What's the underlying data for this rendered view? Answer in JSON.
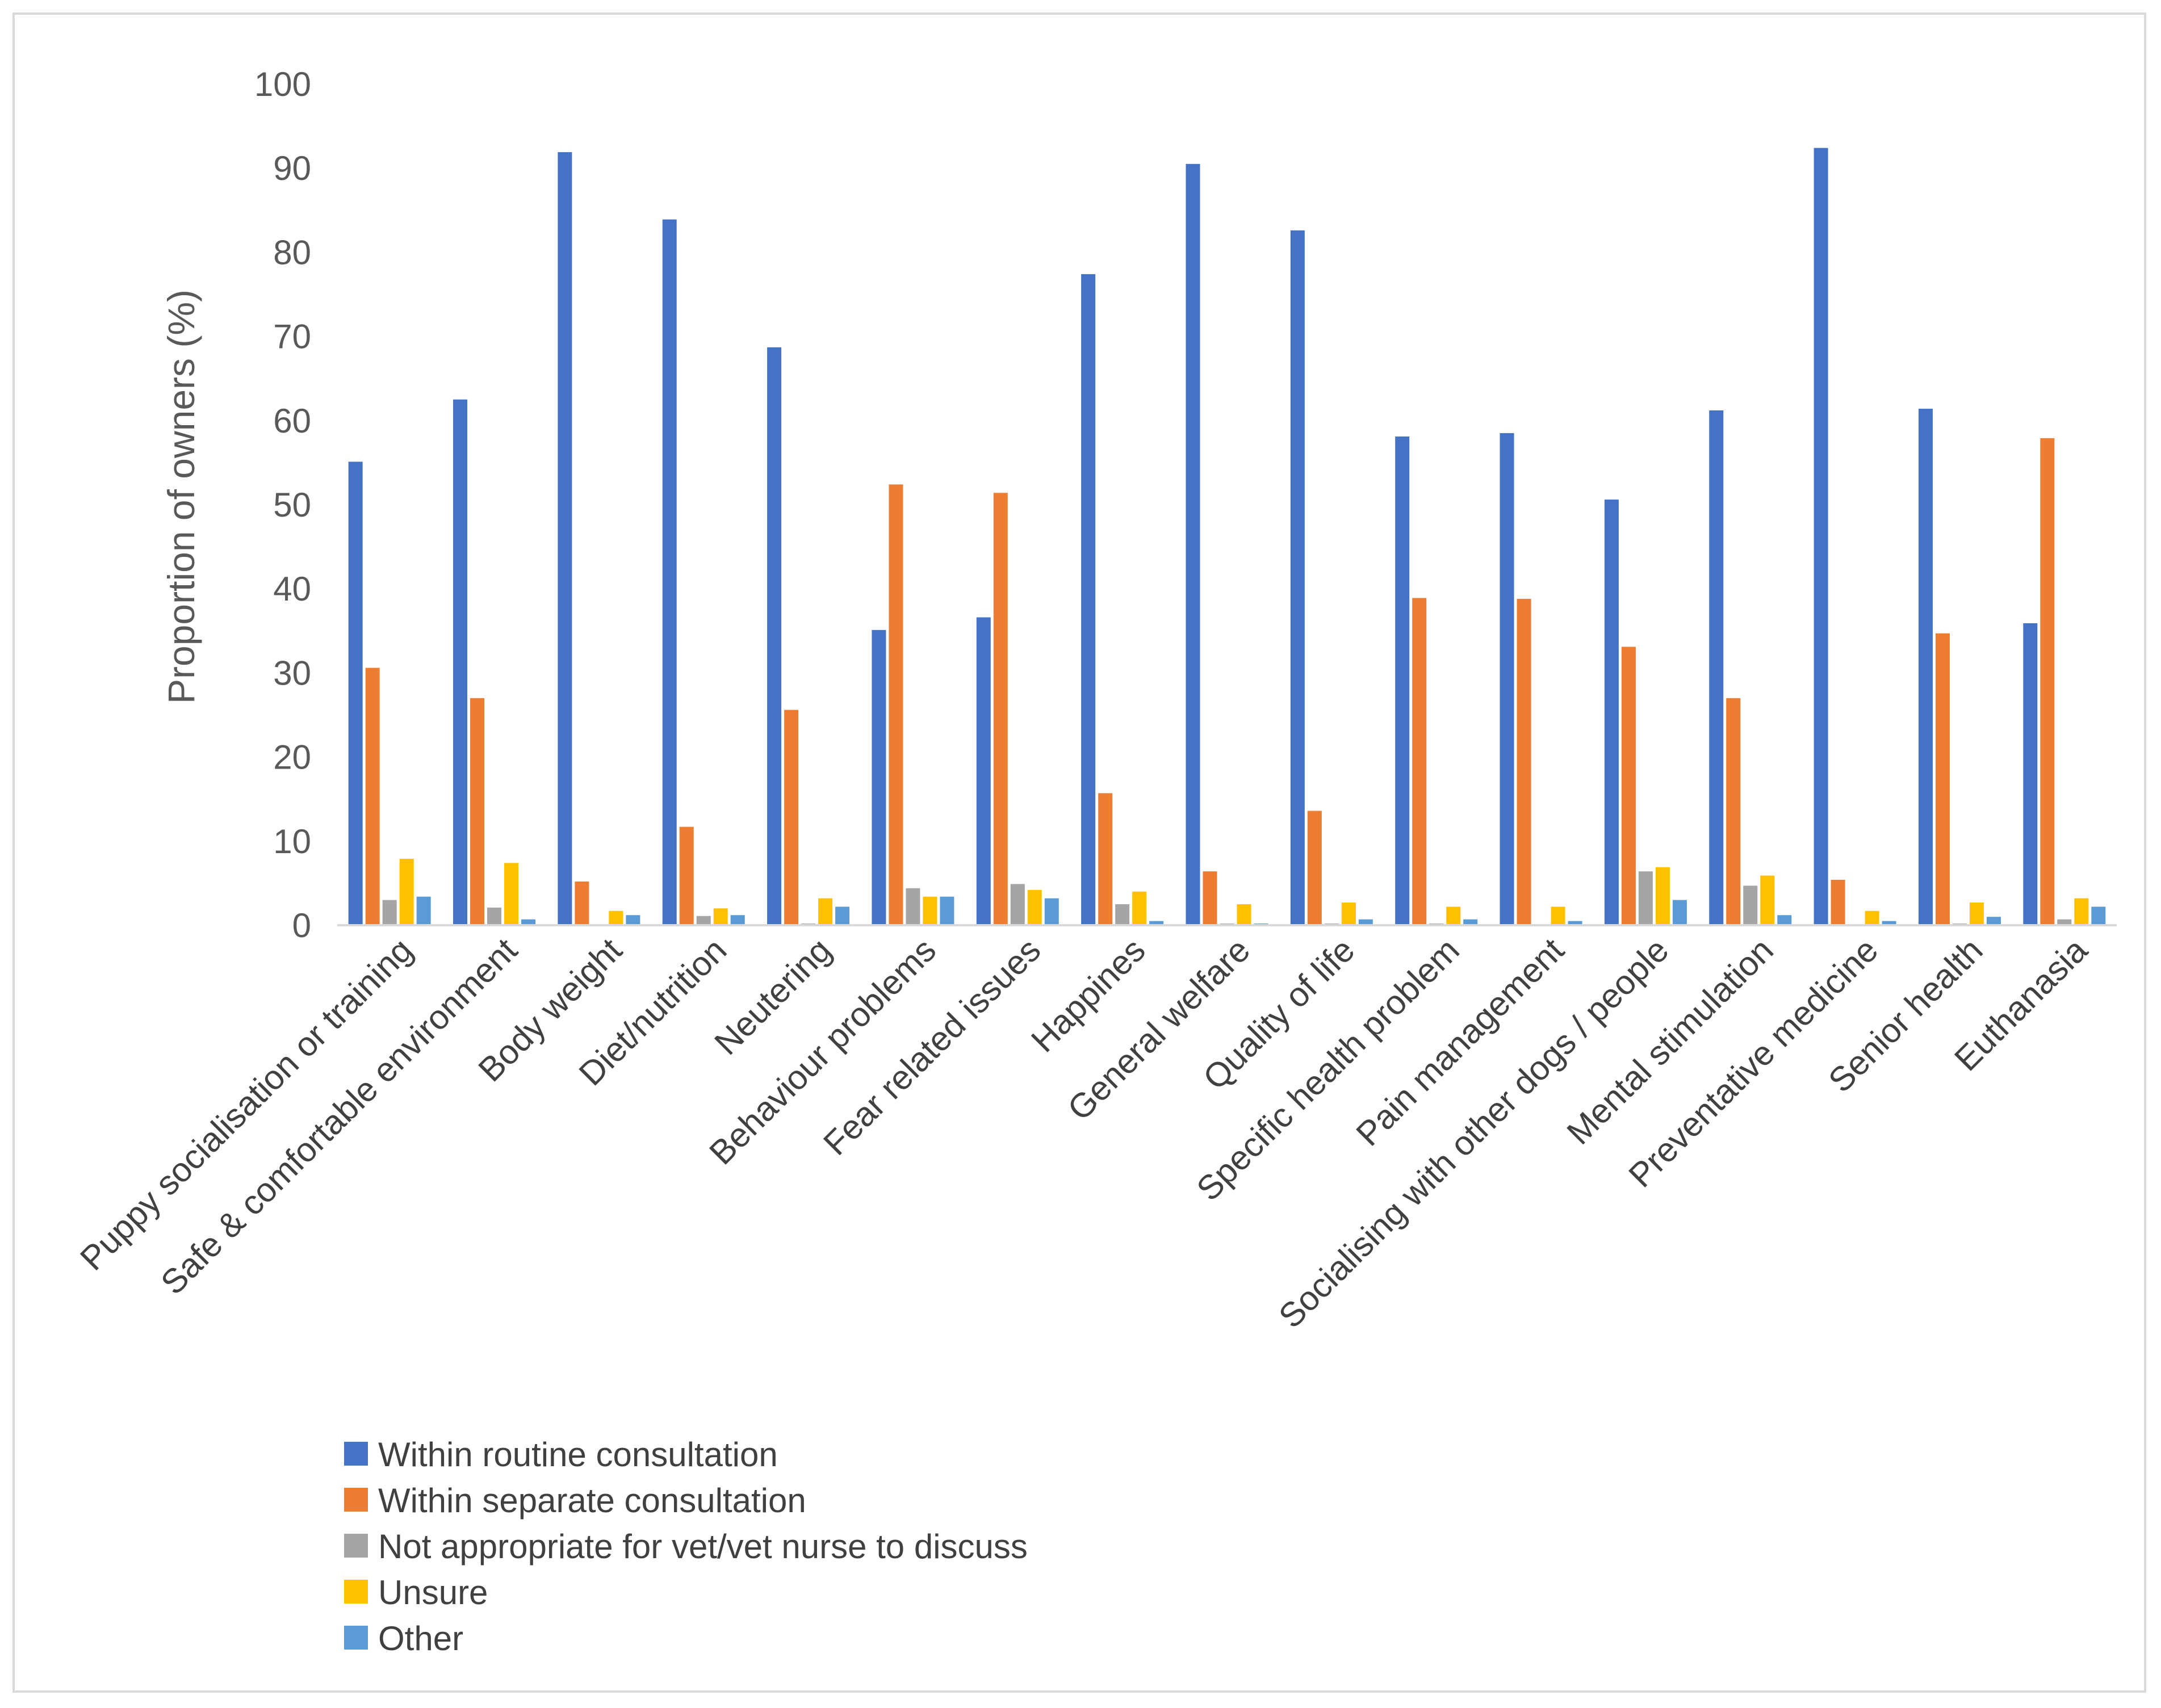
{
  "chart_data": {
    "type": "bar",
    "title": "",
    "xlabel": "",
    "ylabel": "Proportion of owners (%)",
    "ylim": [
      0,
      100
    ],
    "yticks": [
      "0",
      "10",
      "20",
      "30",
      "40",
      "50",
      "60",
      "70",
      "80",
      "90",
      "100"
    ],
    "grid": false,
    "legend_position": "bottom-left",
    "categories": [
      "Puppy socialisation or training",
      "Safe & comfortable environment",
      "Body weight",
      "Diet/nutrition",
      "Neutering",
      "Behaviour problems",
      "Fear related issues",
      "Happines",
      "General welfare",
      "Quality of life",
      "Specific health problem",
      "Pain management",
      "Socialising with other dogs / people",
      "Mental stimulation",
      "Preventative medicine",
      "Senior health",
      "Euthanasia"
    ],
    "series": [
      {
        "name": "Within routine consultation",
        "color": "#4472C4",
        "values": [
          55.1,
          62.5,
          91.9,
          83.9,
          68.7,
          35.1,
          36.6,
          77.4,
          90.5,
          82.6,
          58.1,
          58.5,
          50.6,
          61.2,
          92.4,
          61.4,
          35.9
        ]
      },
      {
        "name": "Within separate consultation",
        "color": "#ED7D31",
        "values": [
          30.6,
          27.0,
          5.2,
          11.7,
          25.6,
          52.4,
          51.4,
          15.7,
          6.4,
          13.6,
          38.9,
          38.8,
          33.1,
          27.0,
          5.4,
          34.7,
          57.9
        ]
      },
      {
        "name": "Not appropriate for vet/vet nurse to discuss",
        "color": "#A5A5A5",
        "values": [
          3.0,
          2.1,
          0.0,
          1.1,
          0.2,
          4.4,
          4.9,
          2.5,
          0.2,
          0.2,
          0.2,
          0.1,
          6.4,
          4.7,
          0.1,
          0.2,
          0.7
        ]
      },
      {
        "name": "Unsure",
        "color": "#FFC000",
        "values": [
          7.9,
          7.4,
          1.7,
          2.0,
          3.2,
          3.4,
          4.2,
          4.0,
          2.5,
          2.7,
          2.2,
          2.2,
          6.9,
          5.9,
          1.7,
          2.7,
          3.2
        ]
      },
      {
        "name": "Other",
        "color": "#5B9BD5",
        "values": [
          3.4,
          0.7,
          1.2,
          1.2,
          2.2,
          3.4,
          3.2,
          0.5,
          0.2,
          0.7,
          0.7,
          0.5,
          3.0,
          1.2,
          0.5,
          1.0,
          2.2
        ]
      }
    ]
  }
}
